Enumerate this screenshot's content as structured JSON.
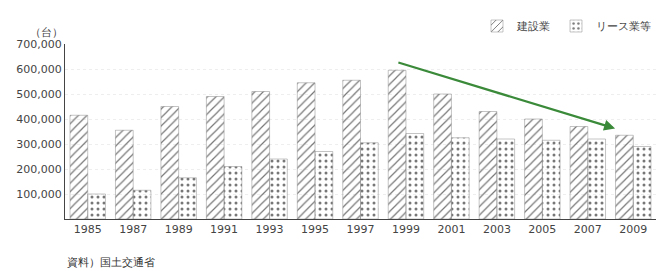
{
  "chart_data": {
    "type": "bar",
    "categories": [
      "1985",
      "1987",
      "1989",
      "1991",
      "1993",
      "1995",
      "1997",
      "1999",
      "2001",
      "2003",
      "2005",
      "2007",
      "2009"
    ],
    "series": [
      {
        "name": "建設業",
        "color": "#e8a0a0",
        "values": [
          415000,
          355000,
          450000,
          490000,
          510000,
          545000,
          555000,
          595000,
          500000,
          430000,
          400000,
          370000,
          335000
        ]
      },
      {
        "name": "リース業等",
        "color": "#b8d8ea",
        "values": [
          100000,
          115000,
          165000,
          210000,
          240000,
          270000,
          305000,
          342000,
          325000,
          320000,
          315000,
          320000,
          290000
        ]
      }
    ],
    "ylabel": "（台）",
    "ylim": [
      0,
      700000
    ],
    "yticks": [
      {
        "value": 100000,
        "label": "100,000"
      },
      {
        "value": 200000,
        "label": "200,000"
      },
      {
        "value": 300000,
        "label": "300,000"
      },
      {
        "value": 400000,
        "label": "400,000"
      },
      {
        "value": 500000,
        "label": "500,000"
      },
      {
        "value": 600000,
        "label": "600,000"
      },
      {
        "value": 700000,
        "label": "700,000"
      }
    ],
    "grid": true,
    "legend": "upper right",
    "annotations": [
      {
        "text": "資料）国土交通省"
      },
      {
        "arrow": {
          "from": [
            6.8,
            628000
          ],
          "to": [
            11.6,
            362000
          ]
        },
        "color": "#3a8a3a"
      }
    ]
  }
}
